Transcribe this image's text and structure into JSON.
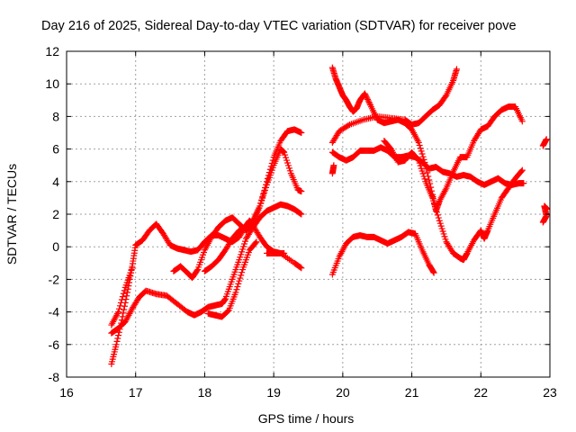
{
  "chart_data": {
    "type": "scatter",
    "title": "Day 216 of 2025, Sidereal Day-to-day VTEC variation (SDTVAR) for receiver pove",
    "xlabel": "GPS time / hours",
    "ylabel": "SDTVAR / TECUs",
    "xlim": [
      16,
      23
    ],
    "ylim": [
      -8,
      12
    ],
    "xticks": [
      "16",
      "17",
      "18",
      "19",
      "20",
      "21",
      "22",
      "23"
    ],
    "yticks": [
      "-8",
      "-6",
      "-4",
      "-2",
      "0",
      "2",
      "4",
      "6",
      "8",
      "10",
      "12"
    ],
    "grid": true,
    "marker": "+",
    "color": "#ff0000",
    "series": [
      {
        "name": "track-1",
        "points": [
          [
            16.65,
            -7.2
          ],
          [
            16.72,
            -6.0
          ],
          [
            16.8,
            -4.5
          ],
          [
            16.88,
            -2.8
          ],
          [
            16.95,
            -1.2
          ],
          [
            17.0,
            0.1
          ],
          [
            17.1,
            0.4
          ],
          [
            17.2,
            1.0
          ],
          [
            17.3,
            1.4
          ],
          [
            17.4,
            0.8
          ],
          [
            17.5,
            0.1
          ],
          [
            17.6,
            -0.1
          ],
          [
            17.7,
            -0.2
          ],
          [
            17.8,
            -0.3
          ],
          [
            17.9,
            -0.2
          ],
          [
            18.0,
            0.3
          ],
          [
            18.1,
            0.7
          ],
          [
            18.2,
            0.7
          ],
          [
            18.3,
            0.5
          ],
          [
            18.4,
            0.3
          ],
          [
            18.5,
            0.6
          ],
          [
            18.6,
            1.3
          ],
          [
            18.65,
            1.6
          ],
          [
            18.7,
            1.3
          ],
          [
            18.8,
            0.6
          ],
          [
            18.9,
            0.0
          ],
          [
            19.0,
            -0.3
          ],
          [
            19.1,
            -0.4
          ],
          [
            19.15,
            -0.4
          ]
        ]
      },
      {
        "name": "track-2",
        "points": [
          [
            16.65,
            -5.3
          ],
          [
            16.75,
            -5.0
          ],
          [
            16.85,
            -4.6
          ],
          [
            16.95,
            -3.8
          ],
          [
            17.05,
            -3.1
          ],
          [
            17.15,
            -2.7
          ],
          [
            17.3,
            -2.9
          ],
          [
            17.45,
            -3.0
          ],
          [
            17.6,
            -3.5
          ],
          [
            17.75,
            -4.0
          ],
          [
            17.85,
            -4.2
          ],
          [
            17.95,
            -4.0
          ],
          [
            18.05,
            -3.7
          ],
          [
            18.15,
            -3.6
          ],
          [
            18.25,
            -3.5
          ],
          [
            18.3,
            -3.2
          ],
          [
            18.4,
            -2.0
          ],
          [
            18.5,
            -0.8
          ],
          [
            18.6,
            0.5
          ],
          [
            18.7,
            1.2
          ],
          [
            18.8,
            1.8
          ],
          [
            18.9,
            2.2
          ],
          [
            19.0,
            2.4
          ],
          [
            19.1,
            2.6
          ],
          [
            19.2,
            2.5
          ],
          [
            19.3,
            2.3
          ],
          [
            19.4,
            2.0
          ]
        ]
      },
      {
        "name": "track-3",
        "points": [
          [
            16.65,
            -4.8
          ],
          [
            16.75,
            -4.0
          ],
          [
            16.85,
            -2.5
          ],
          [
            16.95,
            -1.3
          ]
        ]
      },
      {
        "name": "track-4",
        "points": [
          [
            17.55,
            -1.5
          ],
          [
            17.65,
            -1.2
          ],
          [
            17.75,
            -1.6
          ],
          [
            17.82,
            -1.9
          ],
          [
            17.9,
            -1.4
          ],
          [
            18.0,
            -0.2
          ],
          [
            18.1,
            0.6
          ],
          [
            18.2,
            1.2
          ],
          [
            18.3,
            1.6
          ],
          [
            18.4,
            1.8
          ],
          [
            18.5,
            1.4
          ],
          [
            18.6,
            1.0
          ],
          [
            18.7,
            1.5
          ],
          [
            18.8,
            2.5
          ],
          [
            18.9,
            3.8
          ],
          [
            19.0,
            5.0
          ],
          [
            19.1,
            6.0
          ],
          [
            19.15,
            5.8
          ],
          [
            19.25,
            4.5
          ],
          [
            19.35,
            3.5
          ],
          [
            19.4,
            3.4
          ]
        ]
      },
      {
        "name": "track-5",
        "points": [
          [
            18.0,
            -1.5
          ],
          [
            18.1,
            -1.2
          ],
          [
            18.2,
            -0.8
          ],
          [
            18.3,
            -0.2
          ],
          [
            18.4,
            0.5
          ],
          [
            18.5,
            1.0
          ],
          [
            18.6,
            1.2
          ],
          [
            18.7,
            1.6
          ],
          [
            18.8,
            2.5
          ],
          [
            18.9,
            4.0
          ],
          [
            19.0,
            5.5
          ],
          [
            19.1,
            6.5
          ],
          [
            19.2,
            7.1
          ],
          [
            19.3,
            7.2
          ],
          [
            19.4,
            7.0
          ]
        ]
      },
      {
        "name": "track-6",
        "points": [
          [
            18.05,
            -4.1
          ],
          [
            18.15,
            -4.2
          ],
          [
            18.25,
            -4.3
          ],
          [
            18.35,
            -3.9
          ],
          [
            18.45,
            -2.8
          ],
          [
            18.55,
            -1.4
          ],
          [
            18.65,
            -0.2
          ],
          [
            18.75,
            0.3
          ]
        ]
      },
      {
        "name": "track-7",
        "points": [
          [
            18.9,
            -0.4
          ],
          [
            19.0,
            -0.4
          ],
          [
            19.1,
            -0.4
          ],
          [
            19.3,
            -1.0
          ],
          [
            19.4,
            -1.3
          ]
        ]
      },
      {
        "name": "track-8",
        "points": [
          [
            19.85,
            11.0
          ],
          [
            19.9,
            10.3
          ],
          [
            19.95,
            9.8
          ],
          [
            20.0,
            9.3
          ],
          [
            20.05,
            9.0
          ],
          [
            20.1,
            8.6
          ],
          [
            20.15,
            8.3
          ],
          [
            20.2,
            8.5
          ],
          [
            20.25,
            9.0
          ],
          [
            20.32,
            9.4
          ],
          [
            20.4,
            8.7
          ],
          [
            20.5,
            7.8
          ],
          [
            20.6,
            7.6
          ],
          [
            20.7,
            7.7
          ],
          [
            20.8,
            7.8
          ],
          [
            20.9,
            7.6
          ],
          [
            21.0,
            7.2
          ],
          [
            21.1,
            6.4
          ],
          [
            21.2,
            5.0
          ],
          [
            21.3,
            3.2
          ],
          [
            21.35,
            2.2
          ],
          [
            21.4,
            2.8
          ],
          [
            21.5,
            3.6
          ],
          [
            21.6,
            4.6
          ],
          [
            21.7,
            5.5
          ],
          [
            21.8,
            5.5
          ],
          [
            21.9,
            6.5
          ],
          [
            22.0,
            7.2
          ],
          [
            22.1,
            7.4
          ],
          [
            22.2,
            8.0
          ],
          [
            22.3,
            8.4
          ],
          [
            22.4,
            8.6
          ],
          [
            22.5,
            8.6
          ],
          [
            22.6,
            7.7
          ]
        ]
      },
      {
        "name": "track-9",
        "points": [
          [
            19.85,
            5.8
          ],
          [
            19.95,
            5.5
          ],
          [
            20.05,
            5.3
          ],
          [
            20.15,
            5.5
          ],
          [
            20.25,
            5.9
          ],
          [
            20.35,
            5.9
          ],
          [
            20.45,
            5.9
          ],
          [
            20.55,
            6.1
          ],
          [
            20.65,
            5.9
          ],
          [
            20.75,
            5.5
          ],
          [
            20.85,
            5.5
          ],
          [
            20.95,
            5.6
          ],
          [
            21.05,
            5.5
          ],
          [
            21.15,
            5.2
          ],
          [
            21.25,
            4.8
          ],
          [
            21.35,
            4.9
          ],
          [
            21.45,
            4.6
          ],
          [
            21.55,
            4.5
          ],
          [
            21.65,
            4.3
          ],
          [
            21.75,
            4.4
          ],
          [
            21.85,
            4.3
          ],
          [
            21.95,
            4.0
          ],
          [
            22.05,
            3.8
          ],
          [
            22.15,
            4.0
          ],
          [
            22.25,
            4.2
          ],
          [
            22.35,
            3.9
          ],
          [
            22.45,
            3.8
          ],
          [
            22.55,
            3.9
          ],
          [
            22.62,
            3.9
          ]
        ]
      },
      {
        "name": "track-10",
        "points": [
          [
            19.85,
            -1.7
          ],
          [
            19.95,
            -0.6
          ],
          [
            20.05,
            0.2
          ],
          [
            20.15,
            0.6
          ],
          [
            20.25,
            0.7
          ],
          [
            20.35,
            0.6
          ],
          [
            20.45,
            0.6
          ],
          [
            20.55,
            0.4
          ],
          [
            20.65,
            0.2
          ],
          [
            20.75,
            0.4
          ],
          [
            20.85,
            0.6
          ],
          [
            20.95,
            0.9
          ],
          [
            21.05,
            0.8
          ],
          [
            21.15,
            -0.2
          ],
          [
            21.25,
            -1.1
          ],
          [
            21.32,
            -1.6
          ]
        ]
      },
      {
        "name": "track-11",
        "points": [
          [
            19.85,
            6.4
          ],
          [
            19.95,
            7.1
          ],
          [
            20.1,
            7.5
          ],
          [
            20.3,
            7.8
          ],
          [
            20.5,
            8.0
          ],
          [
            20.7,
            7.9
          ],
          [
            20.9,
            7.8
          ],
          [
            21.0,
            7.5
          ],
          [
            21.1,
            7.6
          ],
          [
            21.2,
            8.0
          ],
          [
            21.3,
            8.4
          ],
          [
            21.4,
            8.7
          ],
          [
            21.5,
            9.3
          ],
          [
            21.6,
            10.2
          ],
          [
            21.65,
            10.9
          ]
        ]
      },
      {
        "name": "track-12",
        "points": [
          [
            20.6,
            6.5
          ],
          [
            20.7,
            6.0
          ],
          [
            20.8,
            5.2
          ],
          [
            20.9,
            5.3
          ],
          [
            21.0,
            5.8
          ],
          [
            21.1,
            5.3
          ],
          [
            21.2,
            4.0
          ],
          [
            21.3,
            3.0
          ],
          [
            21.4,
            1.6
          ],
          [
            21.5,
            0.3
          ],
          [
            21.6,
            -0.4
          ],
          [
            21.7,
            -0.7
          ],
          [
            21.75,
            -0.8
          ],
          [
            21.8,
            -0.4
          ],
          [
            21.9,
            0.4
          ],
          [
            22.0,
            1.0
          ],
          [
            22.05,
            0.5
          ],
          [
            22.1,
            1.0
          ],
          [
            22.2,
            2.0
          ],
          [
            22.3,
            3.0
          ],
          [
            22.4,
            3.6
          ],
          [
            22.5,
            4.2
          ],
          [
            22.6,
            4.7
          ]
        ]
      },
      {
        "name": "track-13",
        "points": [
          [
            19.85,
            4.5
          ],
          [
            19.87,
            5.0
          ]
        ]
      },
      {
        "name": "track-14",
        "points": [
          [
            22.9,
            6.2
          ],
          [
            22.95,
            6.6
          ]
        ]
      },
      {
        "name": "track-15",
        "points": [
          [
            22.9,
            1.5
          ],
          [
            22.95,
            1.9
          ],
          [
            22.92,
            2.5
          ],
          [
            22.96,
            2.3
          ]
        ]
      }
    ]
  }
}
